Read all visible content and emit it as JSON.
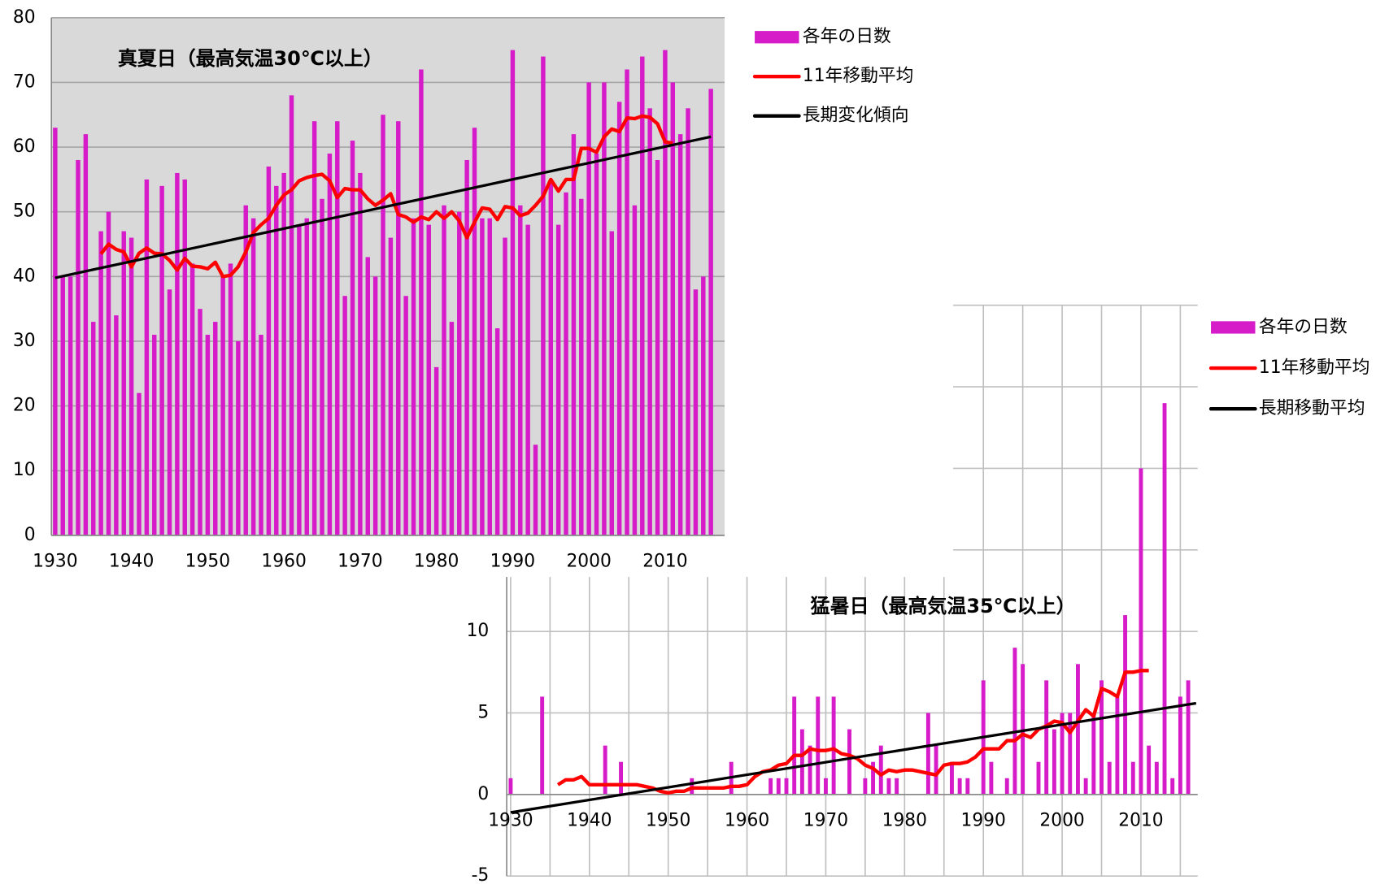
{
  "chart_data": [
    {
      "type": "bar",
      "title": "真夏日（最高気温30℃以上）",
      "x": [
        1930,
        1931,
        1932,
        1933,
        1934,
        1935,
        1936,
        1937,
        1938,
        1939,
        1940,
        1941,
        1942,
        1943,
        1944,
        1945,
        1946,
        1947,
        1948,
        1949,
        1950,
        1951,
        1952,
        1953,
        1954,
        1955,
        1956,
        1957,
        1958,
        1959,
        1960,
        1961,
        1962,
        1963,
        1964,
        1965,
        1966,
        1967,
        1968,
        1969,
        1970,
        1971,
        1972,
        1973,
        1974,
        1975,
        1976,
        1977,
        1978,
        1979,
        1980,
        1981,
        1982,
        1983,
        1984,
        1985,
        1986,
        1987,
        1988,
        1989,
        1990,
        1991,
        1992,
        1993,
        1994,
        1995,
        1996,
        1997,
        1998,
        1999,
        2000,
        2001,
        2002,
        2003,
        2004,
        2005,
        2006,
        2007,
        2008,
        2009,
        2010,
        2011,
        2012,
        2013,
        2014,
        2015,
        2016
      ],
      "xlim": [
        1929.5,
        2017.8
      ],
      "xticks": [
        1930,
        1940,
        1950,
        1960,
        1970,
        1980,
        1990,
        2000,
        2010
      ],
      "ylim": [
        0,
        80
      ],
      "yticks": [
        0,
        10,
        20,
        30,
        40,
        50,
        60,
        70,
        80
      ],
      "grid": true,
      "legend": "right",
      "series": [
        {
          "name": "各年の日数",
          "color": "#d61cc8",
          "type": "bar",
          "values": [
            63,
            40,
            40,
            58,
            62,
            33,
            47,
            50,
            34,
            47,
            46,
            22,
            55,
            31,
            54,
            38,
            56,
            55,
            42,
            35,
            31,
            33,
            40,
            42,
            30,
            51,
            49,
            31,
            57,
            54,
            56,
            68,
            48,
            49,
            64,
            52,
            59,
            64,
            37,
            61,
            56,
            43,
            40,
            65,
            46,
            64,
            37,
            49,
            72,
            48,
            26,
            51,
            33,
            50,
            58,
            63,
            49,
            49,
            32,
            46,
            75,
            51,
            48,
            14,
            74,
            55,
            48,
            53,
            62,
            52,
            70,
            59,
            70,
            47,
            67,
            72,
            51,
            74,
            66,
            58,
            75,
            70,
            62,
            66,
            38,
            40,
            69
          ]
        },
        {
          "name": "11年移動平均",
          "color": "#ff0000",
          "type": "line",
          "values": [
            null,
            null,
            null,
            null,
            null,
            null,
            43.5,
            45,
            44.2,
            43.8,
            41.5,
            43.6,
            44.4,
            43.6,
            43.5,
            42.5,
            41,
            42.8,
            41.6,
            41.5,
            41.2,
            42.2,
            40,
            40.2,
            41.5,
            43.8,
            46.8,
            48,
            49,
            51,
            52.6,
            53.4,
            54.8,
            55.3,
            55.6,
            55.8,
            54.8,
            52.2,
            53.6,
            53.4,
            53.4,
            52,
            51,
            51.8,
            52.8,
            49.6,
            49.2,
            48.4,
            49.2,
            48.8,
            50,
            49,
            50,
            48.6,
            46,
            48.4,
            50.6,
            50.4,
            48.8,
            50.8,
            50.6,
            49.4,
            49.8,
            51,
            52.4,
            55,
            53.2,
            55,
            55,
            59.8,
            59.8,
            59.2,
            61.6,
            62.8,
            62.4,
            64.5,
            64.4,
            64.8,
            64.6,
            63.6,
            60.8,
            60.6,
            null,
            null,
            null,
            null,
            null
          ]
        },
        {
          "name": "長期変化傾向",
          "color": "#000000",
          "type": "line",
          "x": [
            1930,
            2016
          ],
          "values": [
            39.8,
            61.6
          ]
        }
      ]
    },
    {
      "type": "bar",
      "title": "猛暑日（最高気温35℃以上）",
      "x": [
        1930,
        1931,
        1932,
        1933,
        1934,
        1935,
        1936,
        1937,
        1938,
        1939,
        1940,
        1941,
        1942,
        1943,
        1944,
        1945,
        1946,
        1947,
        1948,
        1949,
        1950,
        1951,
        1952,
        1953,
        1954,
        1955,
        1956,
        1957,
        1958,
        1959,
        1960,
        1961,
        1962,
        1963,
        1964,
        1965,
        1966,
        1967,
        1968,
        1969,
        1970,
        1971,
        1972,
        1973,
        1974,
        1975,
        1976,
        1977,
        1978,
        1979,
        1980,
        1981,
        1982,
        1983,
        1984,
        1985,
        1986,
        1987,
        1988,
        1989,
        1990,
        1991,
        1992,
        1993,
        1994,
        1995,
        1996,
        1997,
        1998,
        1999,
        2000,
        2001,
        2002,
        2003,
        2004,
        2005,
        2006,
        2007,
        2008,
        2009,
        2010,
        2011,
        2012,
        2013,
        2014,
        2015,
        2016
      ],
      "xlim": [
        1929.5,
        2017.2
      ],
      "xticks": [
        1930,
        1940,
        1950,
        1960,
        1970,
        1980,
        1990,
        2000,
        2010
      ],
      "ylim": [
        -5,
        30
      ],
      "yticks": [
        -5,
        0,
        5,
        10,
        15,
        20,
        25,
        30
      ],
      "grid": true,
      "legend": "right",
      "series": [
        {
          "name": "各年の日数",
          "color": "#d61cc8",
          "type": "bar",
          "values": [
            1,
            0,
            0,
            0,
            6,
            0,
            0,
            0,
            0,
            0,
            0,
            0,
            3,
            0,
            2,
            0,
            0,
            0,
            0,
            0,
            0,
            0,
            0,
            1,
            0,
            0,
            0,
            0,
            2,
            0,
            0,
            0,
            0,
            1,
            1,
            1,
            6,
            4,
            3,
            6,
            1,
            6,
            0,
            4,
            0,
            1,
            2,
            3,
            1,
            1,
            0,
            0,
            0,
            5,
            3,
            0,
            2,
            1,
            1,
            0,
            7,
            2,
            0,
            1,
            9,
            8,
            0,
            2,
            7,
            4,
            5,
            5,
            8,
            1,
            5,
            7,
            2,
            6,
            11,
            2,
            20,
            3,
            2,
            24,
            1,
            6,
            7
          ]
        },
        {
          "name": "11年移動平均",
          "color": "#ff0000",
          "type": "line",
          "values": [
            null,
            null,
            null,
            null,
            null,
            null,
            0.6,
            0.9,
            0.9,
            1.1,
            0.6,
            0.6,
            0.6,
            0.6,
            0.6,
            0.6,
            0.6,
            0.5,
            0.4,
            0.2,
            0.1,
            0.2,
            0.2,
            0.4,
            0.4,
            0.4,
            0.4,
            0.4,
            0.5,
            0.5,
            0.6,
            1.1,
            1.4,
            1.5,
            1.8,
            1.9,
            2.4,
            2.4,
            2.8,
            2.7,
            2.7,
            2.8,
            2.5,
            2.4,
            2.2,
            1.8,
            1.6,
            1.2,
            1.5,
            1.4,
            1.5,
            1.5,
            1.4,
            1.3,
            1.2,
            1.8,
            1.9,
            1.9,
            2,
            2.3,
            2.8,
            2.8,
            2.8,
            3.3,
            3.3,
            3.7,
            3.5,
            4,
            4.2,
            4.5,
            4.4,
            3.8,
            4.5,
            5.2,
            4.8,
            6.5,
            6.3,
            6,
            7.5,
            7.5,
            7.6,
            7.6,
            null,
            null,
            null,
            null,
            null
          ]
        },
        {
          "name": "長期移動平均",
          "color": "#000000",
          "type": "line",
          "x": [
            1930,
            2017
          ],
          "values": [
            -1.1,
            5.6
          ]
        }
      ]
    }
  ]
}
